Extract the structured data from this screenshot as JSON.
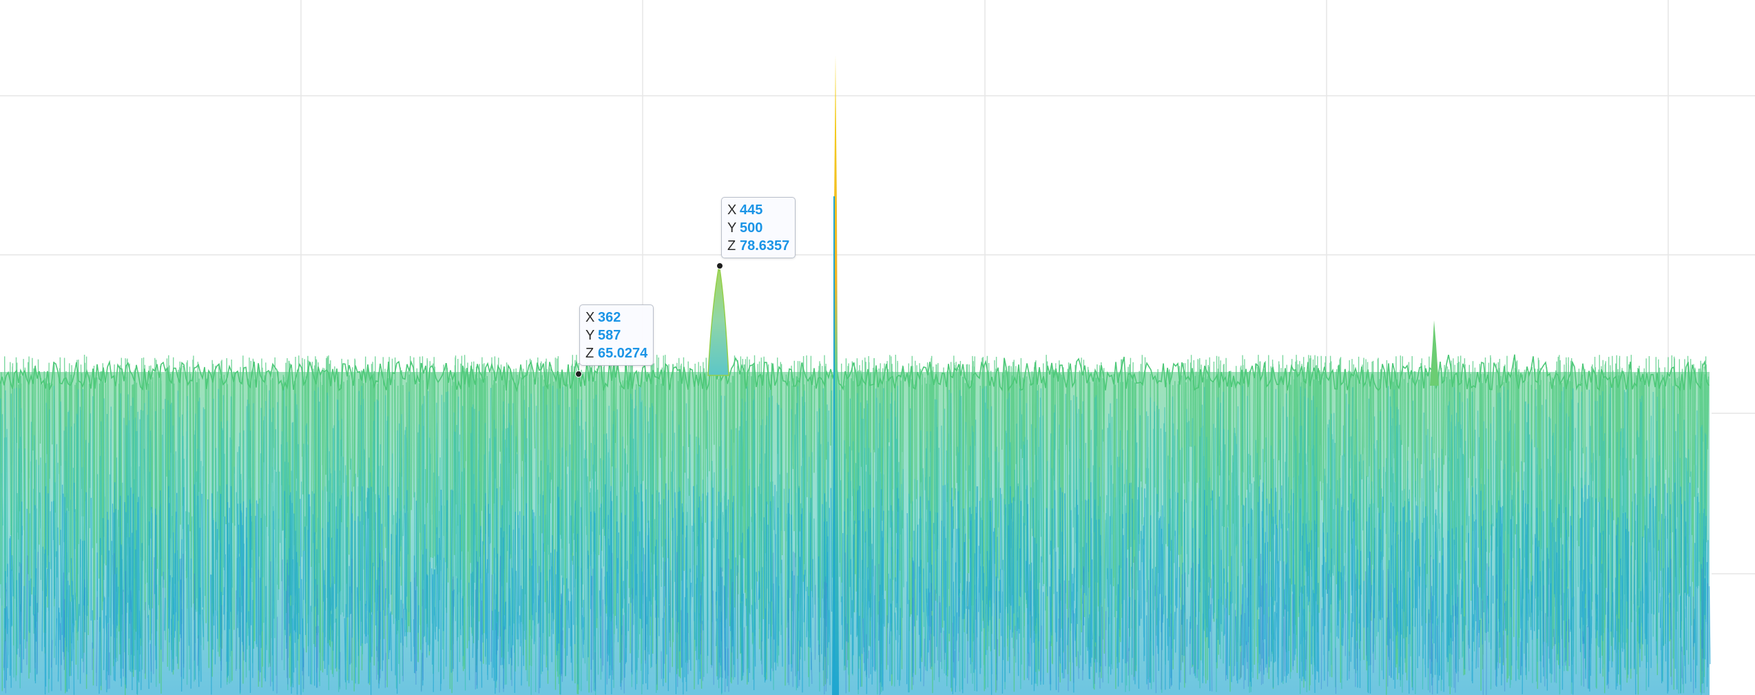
{
  "chart_data": {
    "type": "surface",
    "title": "",
    "xlabel": "",
    "ylabel": "",
    "zlabel": "",
    "colorscale": [
      "#2f6fd1",
      "#1fa6d1",
      "#3cc2b4",
      "#4fc97f",
      "#7fcf5a",
      "#d9c43a",
      "#f5d51b"
    ],
    "series_summary": {
      "baseline_z_mean": 60,
      "notable_peaks": [
        {
          "x": 445,
          "y": 500,
          "z": 78.6357
        },
        {
          "x": 362,
          "y": 587,
          "z": 65.0274
        }
      ]
    },
    "tooltips": [
      {
        "x": "445",
        "y": "500",
        "z": "78.6357"
      },
      {
        "x": "362",
        "y": "587",
        "z": "65.0274"
      }
    ]
  }
}
